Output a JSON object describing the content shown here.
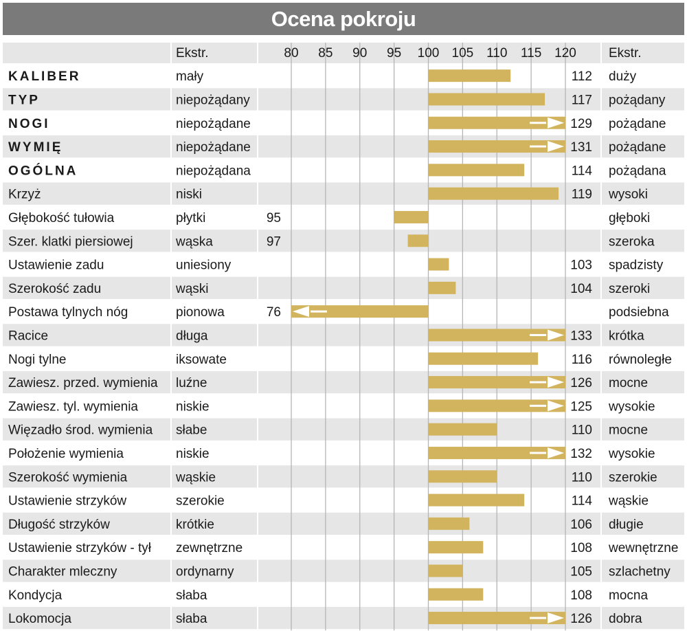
{
  "title": "Ocena pokroju",
  "header": {
    "left_extreme": "Ekstr.",
    "right_extreme": "Ekstr."
  },
  "colors": {
    "bar": "#d2b45f",
    "row_alt": "#e6e6e6",
    "title_bg": "#7a7a7a",
    "grid": "#b5b5b5"
  },
  "chart_data": {
    "type": "bar",
    "orientation": "horizontal",
    "baseline": 100,
    "xlim": [
      80,
      120
    ],
    "ticks": [
      80,
      85,
      90,
      95,
      100,
      105,
      110,
      115,
      120
    ],
    "grid": true,
    "overflow_indicator": "arrow at axis end for values beyond 120 or below 80",
    "rows": [
      {
        "label": "KALIBER",
        "bold": true,
        "low": "mały",
        "high": "duży",
        "value": 112
      },
      {
        "label": "TYP",
        "bold": true,
        "low": "niepożądany",
        "high": "pożądany",
        "value": 117
      },
      {
        "label": "NOGI",
        "bold": true,
        "low": "niepożądane",
        "high": "pożądane",
        "value": 129
      },
      {
        "label": "WYMIĘ",
        "bold": true,
        "low": "niepożądane",
        "high": "pożądane",
        "value": 131
      },
      {
        "label": "OGÓLNA",
        "bold": true,
        "low": "niepożądana",
        "high": "pożądana",
        "value": 114
      },
      {
        "label": "Krzyż",
        "bold": false,
        "low": "niski",
        "high": "wysoki",
        "value": 119
      },
      {
        "label": "Głębokość tułowia",
        "bold": false,
        "low": "płytki",
        "high": "głęboki",
        "value": 95
      },
      {
        "label": "Szer. klatki piersiowej",
        "bold": false,
        "low": "wąska",
        "high": "szeroka",
        "value": 97
      },
      {
        "label": "Ustawienie zadu",
        "bold": false,
        "low": "uniesiony",
        "high": "spadzisty",
        "value": 103
      },
      {
        "label": "Szerokość zadu",
        "bold": false,
        "low": "wąski",
        "high": "szeroki",
        "value": 104
      },
      {
        "label": "Postawa tylnych nóg",
        "bold": false,
        "low": "pionowa",
        "high": "podsiebna",
        "value": 76
      },
      {
        "label": "Racice",
        "bold": false,
        "low": "długa",
        "high": "krótka",
        "value": 133
      },
      {
        "label": "Nogi tylne",
        "bold": false,
        "low": "iksowate",
        "high": "równoległe",
        "value": 116
      },
      {
        "label": "Zawiesz. przed. wymienia",
        "bold": false,
        "low": "luźne",
        "high": "mocne",
        "value": 126
      },
      {
        "label": "Zawiesz. tyl. wymienia",
        "bold": false,
        "low": "niskie",
        "high": "wysokie",
        "value": 125
      },
      {
        "label": "Więzadło środ. wymienia",
        "bold": false,
        "low": "słabe",
        "high": "mocne",
        "value": 110
      },
      {
        "label": "Położenie wymienia",
        "bold": false,
        "low": "niskie",
        "high": "wysokie",
        "value": 132
      },
      {
        "label": "Szerokość wymienia",
        "bold": false,
        "low": "wąskie",
        "high": "szerokie",
        "value": 110
      },
      {
        "label": "Ustawienie strzyków",
        "bold": false,
        "low": "szerokie",
        "high": "wąskie",
        "value": 114
      },
      {
        "label": "Długość strzyków",
        "bold": false,
        "low": "krótkie",
        "high": "długie",
        "value": 106
      },
      {
        "label": "Ustawienie strzyków - tył",
        "bold": false,
        "low": "zewnętrzne",
        "high": "wewnętrzne",
        "value": 108
      },
      {
        "label": "Charakter mleczny",
        "bold": false,
        "low": "ordynarny",
        "high": "szlachetny",
        "value": 105
      },
      {
        "label": "Kondycja",
        "bold": false,
        "low": "słaba",
        "high": "mocna",
        "value": 108
      },
      {
        "label": "Lokomocja",
        "bold": false,
        "low": "słaba",
        "high": "dobra",
        "value": 126
      }
    ]
  }
}
